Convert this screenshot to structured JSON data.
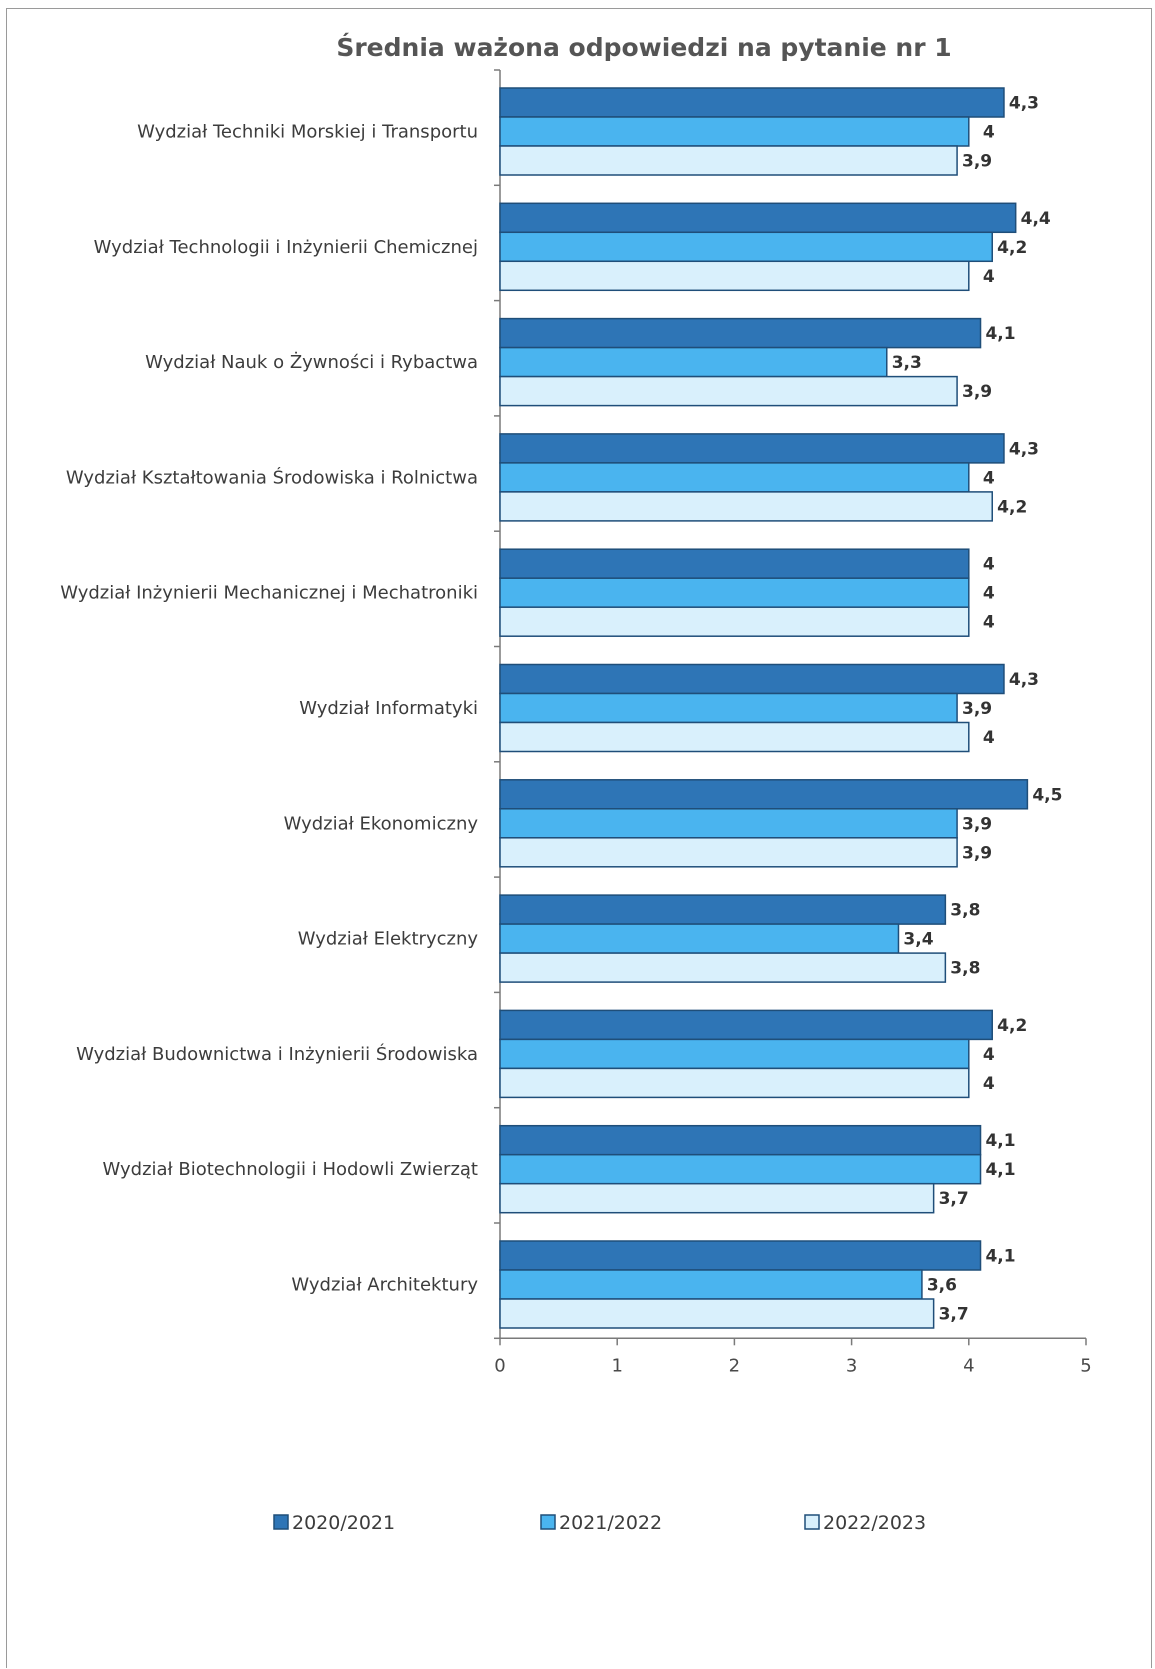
{
  "chart_data": {
    "type": "bar",
    "orientation": "horizontal",
    "title": "Średnia ważona odpowiedzi na pytanie nr 1",
    "categories": [
      "Wydział Techniki Morskiej i Transportu",
      "Wydział Technologii i Inżynierii Chemicznej",
      "Wydział Nauk o Żywności i Rybactwa",
      "Wydział Kształtowania Środowiska i Rolnictwa",
      "Wydział Inżynierii Mechanicznej i Mechatroniki",
      "Wydział Informatyki",
      "Wydział Ekonomiczny",
      "Wydział Elektryczny",
      "Wydział Budownictwa i Inżynierii  Środowiska",
      "Wydział Biotechnologii i Hodowli Zwierząt",
      "Wydział Architektury"
    ],
    "series": [
      {
        "name": "2020/2021",
        "color": "#2e75b6",
        "values": [
          4.3,
          4.4,
          4.1,
          4.3,
          4,
          4.3,
          4.5,
          3.8,
          4.2,
          4.1,
          4.1
        ],
        "labels": [
          "4,3",
          "4,4",
          "4,1",
          "4,3",
          "4",
          "4,3",
          "4,5",
          "3,8",
          "4,2",
          "4,1",
          "4,1"
        ]
      },
      {
        "name": "2021/2022",
        "color": "#4ab4ef",
        "values": [
          4,
          4.2,
          3.3,
          4,
          4,
          3.9,
          3.9,
          3.4,
          4,
          4.1,
          3.6
        ],
        "labels": [
          "4",
          "4,2",
          "3,3",
          "4",
          "4",
          "3,9",
          "3,9",
          "3,4",
          "4",
          "4,1",
          "3,6"
        ]
      },
      {
        "name": "2022/2023",
        "color": "#d9f0fc",
        "values": [
          3.9,
          4,
          3.9,
          4.2,
          4,
          4,
          3.9,
          3.8,
          4,
          3.7,
          3.7
        ],
        "labels": [
          "3,9",
          "4",
          "3,9",
          "4,2",
          "4",
          "4",
          "3,9",
          "3,8",
          "4",
          "3,7",
          "3,7"
        ]
      }
    ],
    "xlim": [
      0,
      5
    ],
    "xticks": [
      "0",
      "1",
      "2",
      "3",
      "4",
      "5"
    ],
    "grid": false,
    "legend_position": "bottom"
  }
}
